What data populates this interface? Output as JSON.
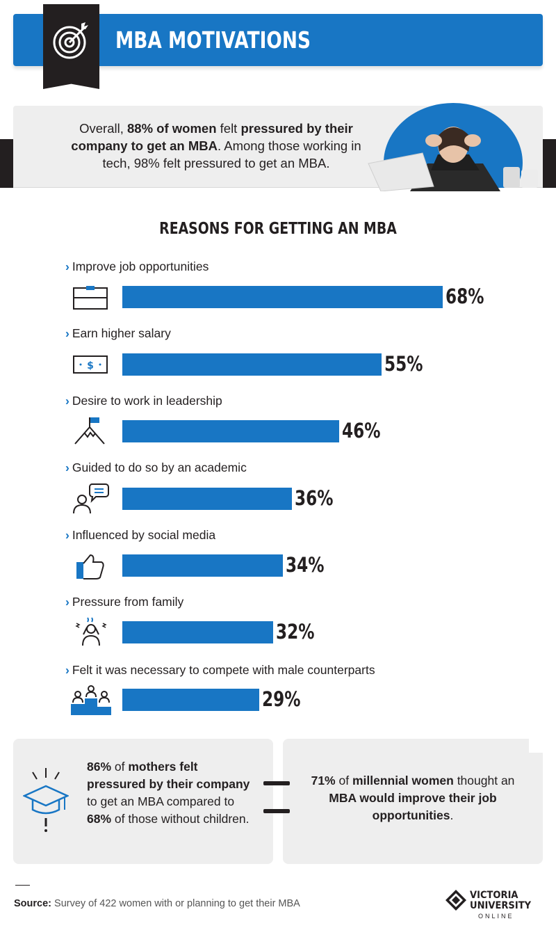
{
  "header": {
    "title": "MBA MOTIVATIONS",
    "icon": "target-icon"
  },
  "intro": {
    "seg1": "Overall, ",
    "seg2": "88% of women",
    "seg3": " felt ",
    "seg4": "pressured by their company to get an MBA",
    "seg5": ". Among those working in tech, 98% felt pressured to get an MBA."
  },
  "chart_data": {
    "type": "bar",
    "title": "REASONS FOR GETTING AN MBA",
    "orientation": "horizontal",
    "categories": [
      "Improve job opportunities",
      "Earn higher salary",
      "Desire to work in leadership",
      "Guided to do so by an academic",
      "Influenced by social media",
      "Pressure from family",
      "Felt it was necessary to compete with male counterparts"
    ],
    "values": [
      68,
      55,
      46,
      36,
      34,
      32,
      29
    ],
    "value_labels": [
      "68%",
      "55%",
      "46%",
      "36%",
      "34%",
      "32%",
      "29%"
    ],
    "icons": [
      "briefcase-icon",
      "dollar-bill-icon",
      "mountain-flag-icon",
      "speech-bubble-person-icon",
      "thumbs-up-icon",
      "stressed-person-icon",
      "podium-icon"
    ],
    "unit": "%",
    "bar_color": "#1876c4",
    "grid": false
  },
  "left_panel": {
    "t1": "86%",
    "t2": " of ",
    "t3": "mothers felt pressured by their company",
    "t4": " to get an MBA compared to ",
    "t5": "68%",
    "t6": " of those without children.",
    "icon": "graduation-cap-icon"
  },
  "right_panel": {
    "t1": "71%",
    "t2": " of ",
    "t3": "millennial women",
    "t4": " thought an ",
    "t5": "MBA would improve their job opportunities",
    "t6": "."
  },
  "footer": {
    "source_label": "Source:",
    "source_text": " Survey of 422 women with or planning to get their MBA",
    "logo_line1": "VICTORIA",
    "logo_line2": "UNIVERSITY",
    "logo_line3": "ONLINE"
  },
  "colors": {
    "accent": "#1876c4",
    "dark": "#231f20",
    "panel": "#eeeeee"
  }
}
